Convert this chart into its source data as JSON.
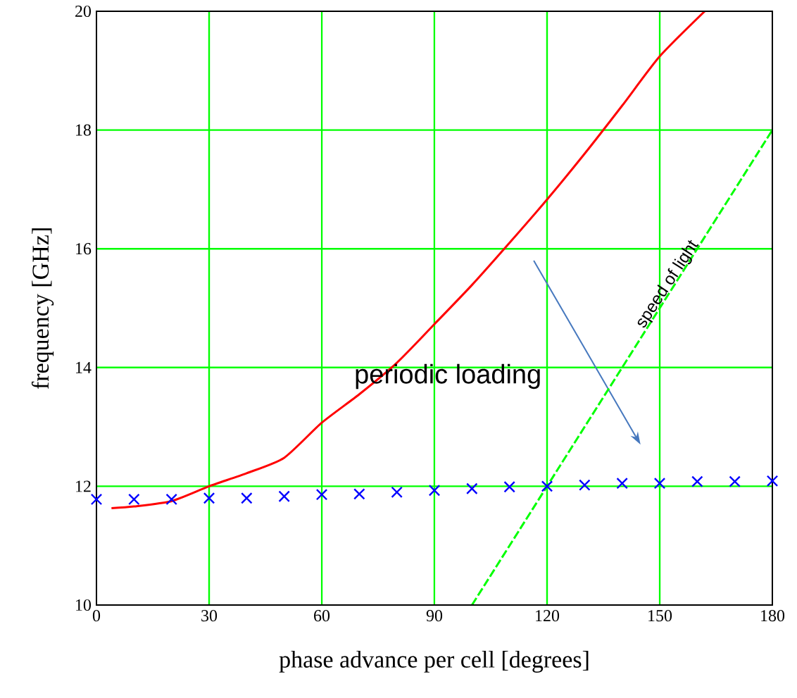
{
  "chart_data": {
    "type": "line",
    "xlabel": "phase advance per cell [degrees]",
    "ylabel": "frequency [GHz]",
    "xlim": [
      0,
      180
    ],
    "ylim": [
      10,
      20
    ],
    "xticks": [
      0,
      30,
      60,
      90,
      120,
      150,
      180
    ],
    "yticks": [
      10,
      12,
      14,
      16,
      18,
      20
    ],
    "grid": true,
    "series": [
      {
        "color": "#ff0000",
        "marker": "none",
        "line_style": "solid",
        "x": [
          4,
          10,
          20,
          30,
          40,
          50,
          60,
          70,
          80,
          90,
          100,
          110,
          120,
          130,
          140,
          150,
          162
        ],
        "values": [
          11.63,
          11.66,
          11.75,
          12.0,
          12.22,
          12.48,
          13.07,
          13.55,
          14.08,
          14.73,
          15.39,
          16.1,
          16.83,
          17.6,
          18.41,
          19.24,
          20.0
        ]
      },
      {
        "type": "scatter",
        "color": "#0000ff",
        "marker": "cross",
        "x": [
          0,
          10,
          20,
          30,
          40,
          50,
          60,
          70,
          80,
          90,
          100,
          110,
          120,
          130,
          140,
          150,
          160,
          170,
          180
        ],
        "values": [
          11.78,
          11.78,
          11.78,
          11.8,
          11.8,
          11.83,
          11.86,
          11.87,
          11.9,
          11.93,
          11.96,
          11.99,
          12.0,
          12.02,
          12.05,
          12.05,
          12.08,
          12.08,
          12.09
        ]
      },
      {
        "color": "#00ff00",
        "marker": "none",
        "line_style": "dashed",
        "x": [
          100,
          180
        ],
        "values": [
          10,
          18
        ]
      }
    ],
    "annotations": [
      "speed of light",
      "periodic loading"
    ]
  }
}
